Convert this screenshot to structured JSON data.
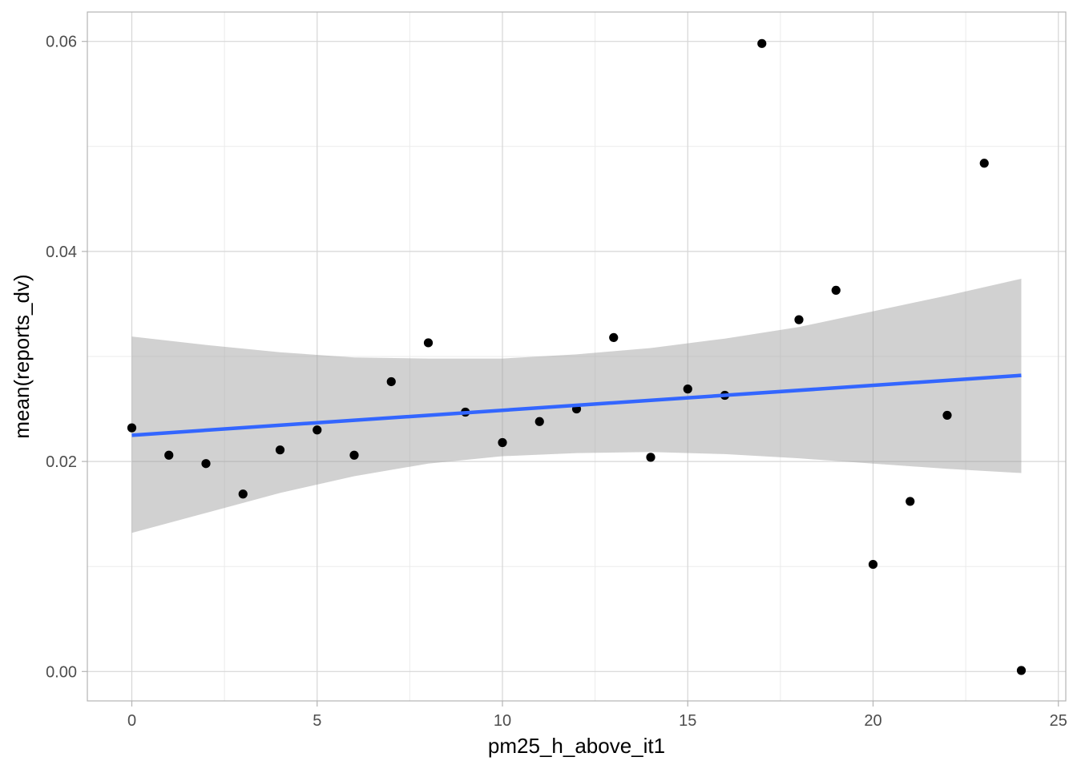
{
  "chart_data": {
    "type": "scatter",
    "title": "",
    "xlabel": "pm25_h_above_it1",
    "ylabel": "mean(reports_dv)",
    "xlim": [
      -1.2,
      25.2
    ],
    "ylim": [
      -0.0028,
      0.0628
    ],
    "x_ticks": [
      0,
      5,
      10,
      15,
      20,
      25
    ],
    "x_tick_labels": [
      "0",
      "5",
      "10",
      "15",
      "20",
      "25"
    ],
    "y_ticks": [
      0.0,
      0.02,
      0.04,
      0.06
    ],
    "y_tick_labels": [
      "0.00",
      "0.02",
      "0.04",
      "0.06"
    ],
    "x_minor_ticks": [
      2.5,
      7.5,
      12.5,
      17.5,
      22.5
    ],
    "y_minor_ticks": [
      0.01,
      0.03,
      0.05
    ],
    "grid": true,
    "points": {
      "x": [
        0,
        1,
        2,
        3,
        4,
        5,
        6,
        7,
        8,
        9,
        10,
        11,
        12,
        13,
        14,
        15,
        16,
        17,
        18,
        19,
        20,
        21,
        22,
        23,
        24
      ],
      "y": [
        0.0232,
        0.0206,
        0.0198,
        0.0169,
        0.0211,
        0.023,
        0.0206,
        0.0276,
        0.0313,
        0.0247,
        0.0218,
        0.0238,
        0.025,
        0.0318,
        0.0204,
        0.0269,
        0.0263,
        0.0598,
        0.0335,
        0.0363,
        0.0102,
        0.0162,
        0.0244,
        0.0484,
        0.0001
      ],
      "color": "#000000"
    },
    "fit_line": {
      "method": "lm",
      "x": [
        0,
        24
      ],
      "y": [
        0.0225,
        0.0282
      ],
      "color": "#3366FF"
    },
    "confidence_band": {
      "x": [
        0,
        2,
        4,
        6,
        8,
        10,
        12,
        14,
        16,
        18,
        20,
        22,
        24
      ],
      "lower": [
        0.0132,
        0.0151,
        0.017,
        0.0186,
        0.0198,
        0.0205,
        0.0208,
        0.0209,
        0.0207,
        0.0203,
        0.0198,
        0.0193,
        0.0189
      ],
      "upper": [
        0.0319,
        0.0311,
        0.0304,
        0.0299,
        0.0298,
        0.0298,
        0.0302,
        0.0308,
        0.0317,
        0.0328,
        0.0343,
        0.0358,
        0.0374
      ],
      "color": "#999999"
    }
  }
}
